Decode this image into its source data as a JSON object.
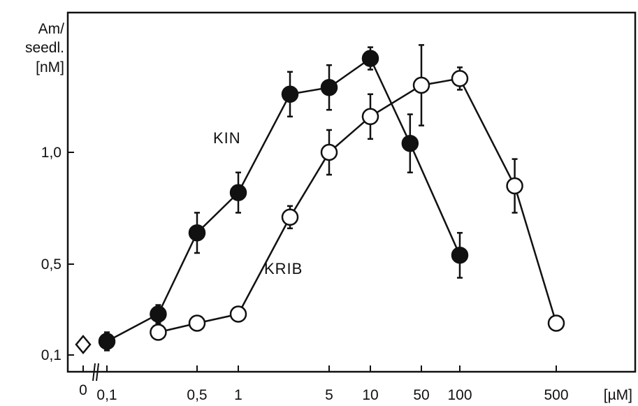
{
  "chart_data": {
    "type": "line",
    "title": "",
    "ylabel_lines": [
      "Am/",
      "seedl.",
      "[nM]"
    ],
    "xlabel": "[µM]",
    "x_scale": "log",
    "x_ticks": [
      {
        "label": "0",
        "value": 0
      },
      {
        "label": "0,1",
        "value": 0.1
      },
      {
        "label": "0,5",
        "value": 0.5
      },
      {
        "label": "1",
        "value": 1
      },
      {
        "label": "5",
        "value": 5
      },
      {
        "label": "10",
        "value": 10
      },
      {
        "label": "50",
        "value": 50
      },
      {
        "label": "100",
        "value": 100
      },
      {
        "label": "500",
        "value": 500
      }
    ],
    "y_ticks": [
      {
        "label": "0,1",
        "value": 0.1
      },
      {
        "label": "0,5",
        "value": 0.5
      },
      {
        "label": "1,0",
        "value": 1.0
      }
    ],
    "ylim": [
      0.05,
      1.5
    ],
    "control": {
      "x": 0,
      "y": 0.1,
      "marker": "diamond"
    },
    "series": [
      {
        "name": "KIN",
        "marker": "filled-circle",
        "points": [
          {
            "x": 0.1,
            "y": 0.16,
            "err": 0.04
          },
          {
            "x": 0.25,
            "y": 0.28,
            "err": 0.04
          },
          {
            "x": 0.5,
            "y": 0.64,
            "err": 0.09
          },
          {
            "x": 1,
            "y": 0.82,
            "err": 0.09
          },
          {
            "x": 2.5,
            "y": 1.26,
            "err": 0.1
          },
          {
            "x": 5,
            "y": 1.29,
            "err": 0.1
          },
          {
            "x": 10,
            "y": 1.42,
            "err": 0.05
          },
          {
            "x": 35,
            "y": 1.04,
            "err": 0.13
          },
          {
            "x": 100,
            "y": 0.54,
            "err": 0.1
          }
        ]
      },
      {
        "name": "KRIB",
        "marker": "open-circle",
        "points": [
          {
            "x": 0.25,
            "y": 0.2,
            "err": 0.03
          },
          {
            "x": 0.5,
            "y": 0.24,
            "err": 0.03
          },
          {
            "x": 1,
            "y": 0.28,
            "err": 0.03
          },
          {
            "x": 2.5,
            "y": 0.71,
            "err": 0.05
          },
          {
            "x": 5,
            "y": 1.0,
            "err": 0.1
          },
          {
            "x": 10,
            "y": 1.16,
            "err": 0.1
          },
          {
            "x": 50,
            "y": 1.3,
            "err": 0.18
          },
          {
            "x": 100,
            "y": 1.33,
            "err": 0.05
          },
          {
            "x": 250,
            "y": 0.85,
            "err": 0.12
          },
          {
            "x": 500,
            "y": 0.24,
            "err": 0.03
          }
        ]
      }
    ]
  }
}
